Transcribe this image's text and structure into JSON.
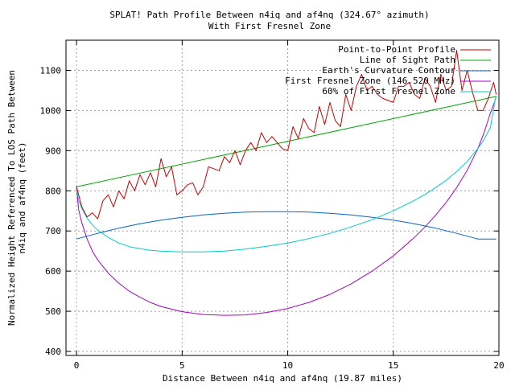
{
  "chart_data": {
    "type": "line",
    "title": "SPLAT! Path Profile Between n4iq and af4nq (324.67° azimuth)",
    "subtitle": "With First Fresnel Zone",
    "xlabel": "Distance Between n4iq and af4nq (19.87 miles)",
    "ylabel_line1": "Normalized Height Referenced To LOS Path Between",
    "ylabel_line2": "n4iq and af4nq (feet)",
    "xlim": [
      -0.5,
      20
    ],
    "ylim": [
      390,
      1175
    ],
    "x_ticks": [
      0,
      5,
      10,
      15,
      20
    ],
    "y_ticks": [
      400,
      500,
      600,
      700,
      800,
      900,
      1000,
      1100
    ],
    "grid": true,
    "legend_position": "top-right",
    "colors": {
      "profile": "#cc0000",
      "los": "#00aa00",
      "curvature": "#0066cc",
      "fresnel": "#aa00cc",
      "fresnel60": "#00cccc"
    },
    "series": [
      {
        "key": "profile",
        "name": "Point-to-Point Profile",
        "x": [
          0,
          0.25,
          0.5,
          0.75,
          1,
          1.25,
          1.5,
          1.75,
          2,
          2.25,
          2.5,
          2.75,
          3,
          3.25,
          3.5,
          3.75,
          4,
          4.25,
          4.5,
          4.75,
          5,
          5.25,
          5.5,
          5.75,
          6,
          6.25,
          6.5,
          6.75,
          7,
          7.25,
          7.5,
          7.75,
          8,
          8.25,
          8.5,
          8.75,
          9,
          9.25,
          9.5,
          9.75,
          10,
          10.25,
          10.5,
          10.75,
          11,
          11.25,
          11.5,
          11.75,
          12,
          12.25,
          12.5,
          12.75,
          13,
          13.25,
          13.5,
          13.75,
          14,
          14.25,
          14.5,
          14.75,
          15,
          15.25,
          15.5,
          15.75,
          16,
          16.25,
          16.5,
          16.75,
          17,
          17.25,
          17.5,
          17.75,
          18,
          18.25,
          18.5,
          18.75,
          19,
          19.25,
          19.5,
          19.75,
          19.87
        ],
        "y": [
          810,
          760,
          735,
          745,
          730,
          775,
          790,
          760,
          800,
          780,
          825,
          800,
          840,
          815,
          845,
          810,
          880,
          835,
          860,
          790,
          800,
          815,
          820,
          790,
          810,
          860,
          855,
          850,
          885,
          870,
          900,
          865,
          900,
          920,
          900,
          945,
          920,
          935,
          920,
          905,
          900,
          960,
          930,
          980,
          955,
          945,
          1010,
          965,
          1020,
          975,
          960,
          1040,
          1000,
          1060,
          1090,
          1050,
          1060,
          1040,
          1030,
          1025,
          1020,
          1060,
          1060,
          1070,
          1040,
          1030,
          1080,
          1060,
          1020,
          1090,
          1050,
          1060,
          1150,
          1050,
          1100,
          1045,
          1000,
          1000,
          1030,
          1070,
          1040
        ]
      },
      {
        "key": "los",
        "name": "Line of Sight Path",
        "x": [
          0,
          19.87
        ],
        "y": [
          810,
          1035
        ]
      },
      {
        "key": "curvature",
        "name": "Earth's Curvature Contour",
        "x": [
          0,
          1,
          2,
          3,
          4,
          5,
          6,
          7,
          8,
          9,
          10,
          11,
          12,
          13,
          14,
          15,
          16,
          17,
          18,
          19,
          19.87
        ],
        "y": [
          680,
          694,
          707,
          718,
          727,
          734,
          740,
          744,
          747,
          748,
          748,
          747,
          744,
          740,
          734,
          727,
          718,
          707,
          694,
          680,
          680
        ]
      },
      {
        "key": "fresnel",
        "name": "First Fresnel Zone (146.520 MHz)",
        "x": [
          0,
          0.1,
          0.25,
          0.5,
          0.75,
          1,
          1.5,
          2,
          2.5,
          3,
          3.5,
          4,
          5,
          6,
          7,
          8,
          9,
          10,
          11,
          12,
          13,
          14,
          15,
          16,
          16.5,
          17,
          17.5,
          18,
          18.5,
          19,
          19.3,
          19.6,
          19.8,
          19.87
        ],
        "y": [
          810,
          753,
          720,
          680,
          650,
          628,
          595,
          570,
          550,
          535,
          522,
          512,
          499,
          492,
          490,
          491,
          497,
          507,
          522,
          542,
          568,
          600,
          638,
          684,
          710,
          739,
          771,
          808,
          851,
          905,
          945,
          994,
          1022,
          1035
        ]
      },
      {
        "key": "fresnel60",
        "name": "60% of First Fresnel Zone",
        "x": [
          0,
          0.1,
          0.25,
          0.5,
          0.75,
          1,
          1.5,
          2,
          2.5,
          3,
          3.5,
          4,
          5,
          6,
          7,
          8,
          9,
          10,
          11,
          12,
          13,
          14,
          15,
          16,
          16.5,
          17,
          17.5,
          18,
          18.5,
          19,
          19.3,
          19.6,
          19.8,
          19.87
        ],
        "y": [
          810,
          776,
          756,
          732,
          715,
          702,
          684,
          670,
          661,
          656,
          652,
          650,
          648,
          648,
          650,
          655,
          662,
          670,
          681,
          694,
          710,
          728,
          750,
          776,
          791,
          808,
          826,
          848,
          873,
          905,
          928,
          958,
          1022,
          1035
        ]
      }
    ]
  }
}
